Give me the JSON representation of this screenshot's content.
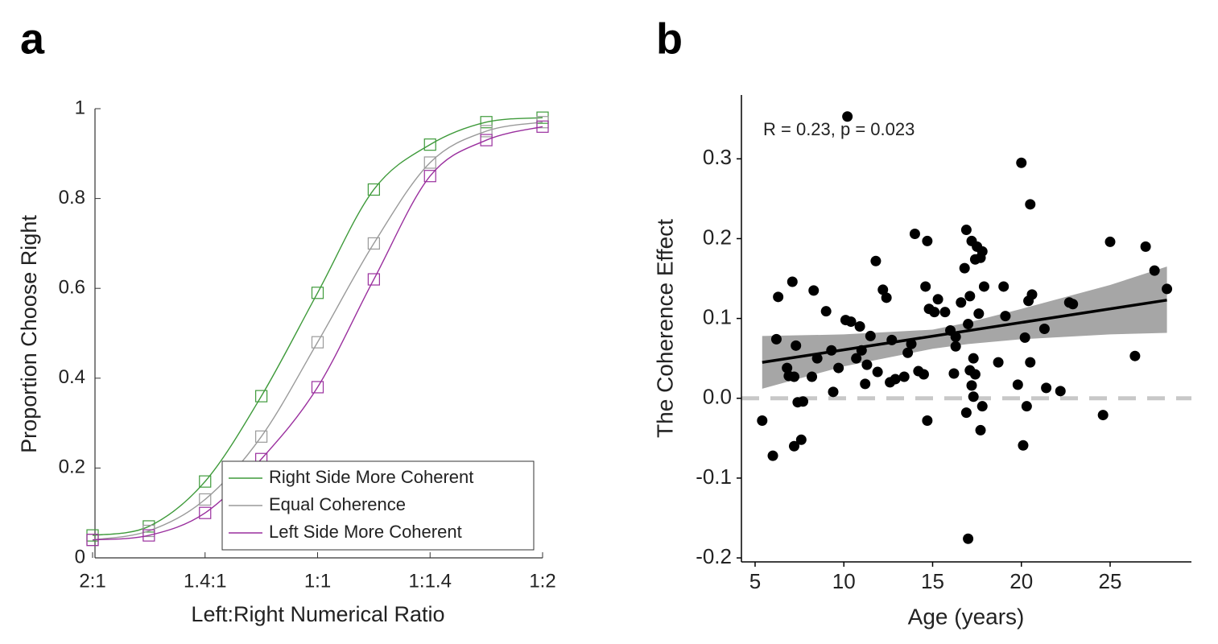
{
  "chart_data": [
    {
      "type": "line",
      "panel_label": "a",
      "markers": "square",
      "xlabel": "Left:Right Numerical Ratio",
      "ylabel": "Proportion Choose Right",
      "categories": [
        "2:1",
        null,
        "1.4:1",
        null,
        "1:1",
        null,
        "1:1.4",
        null,
        "1:2"
      ],
      "series": [
        {
          "name": "Right Side More Coherent",
          "color": "#3e9a3a",
          "values": [
            0.05,
            0.07,
            0.17,
            0.36,
            0.59,
            0.82,
            0.92,
            0.97,
            0.98
          ]
        },
        {
          "name": "Equal Coherence",
          "color": "#9a9a9a",
          "values": [
            0.04,
            0.06,
            0.13,
            0.27,
            0.48,
            0.7,
            0.88,
            0.95,
            0.97
          ]
        },
        {
          "name": "Left Side More Coherent",
          "color": "#9a2f9e",
          "values": [
            0.04,
            0.05,
            0.1,
            0.22,
            0.38,
            0.62,
            0.85,
            0.93,
            0.96
          ]
        }
      ],
      "ylim": [
        0,
        1
      ],
      "yticks": [
        0,
        0.2,
        0.4,
        0.6,
        0.8,
        1
      ],
      "legend": "lower right"
    },
    {
      "type": "scatter",
      "panel_label": "b",
      "color": "#000000",
      "xlabel": "Age (years)",
      "ylabel": "The Coherence Effect",
      "annotation": "R = 0.23, p = 0.023",
      "x": [
        5.4,
        6.0,
        6.2,
        6.3,
        6.8,
        6.9,
        7.1,
        7.2,
        7.2,
        7.3,
        7.4,
        7.6,
        7.7,
        8.2,
        8.3,
        8.5,
        9.0,
        9.3,
        9.4,
        9.7,
        10.1,
        10.2,
        10.4,
        10.7,
        10.9,
        11.0,
        11.2,
        11.3,
        11.5,
        11.8,
        11.9,
        12.2,
        12.4,
        12.6,
        12.7,
        12.9,
        13.4,
        13.6,
        13.8,
        14.0,
        14.2,
        14.5,
        14.6,
        14.7,
        14.7,
        14.8,
        15.1,
        15.3,
        15.7,
        16.0,
        16.2,
        16.3,
        16.3,
        16.6,
        16.8,
        16.9,
        16.9,
        17.0,
        17.0,
        17.1,
        17.1,
        17.2,
        17.2,
        17.3,
        17.3,
        17.4,
        17.4,
        17.5,
        17.6,
        17.7,
        17.7,
        17.8,
        17.9,
        17.8,
        18.7,
        19.0,
        19.1,
        19.8,
        20.0,
        20.1,
        20.2,
        20.3,
        20.4,
        20.5,
        20.5,
        20.6,
        21.3,
        21.4,
        22.2,
        22.7,
        22.9,
        24.6,
        25.0,
        26.4,
        27.0,
        27.5,
        28.2
      ],
      "values": [
        -0.028,
        -0.072,
        0.074,
        0.127,
        0.038,
        0.028,
        0.146,
        -0.06,
        0.027,
        0.066,
        -0.005,
        -0.052,
        -0.004,
        0.027,
        0.135,
        0.05,
        0.109,
        0.06,
        0.008,
        0.038,
        0.098,
        0.353,
        0.096,
        0.05,
        0.09,
        0.06,
        0.018,
        0.042,
        0.078,
        0.172,
        0.033,
        0.136,
        0.126,
        0.02,
        0.073,
        0.024,
        0.027,
        0.057,
        0.068,
        0.206,
        0.034,
        0.03,
        0.14,
        -0.028,
        0.197,
        0.112,
        0.108,
        0.124,
        0.108,
        0.085,
        0.031,
        0.065,
        0.077,
        0.12,
        0.163,
        -0.018,
        0.211,
        -0.176,
        0.093,
        0.128,
        0.035,
        0.016,
        0.197,
        0.002,
        0.05,
        0.174,
        0.03,
        0.19,
        0.106,
        -0.04,
        0.176,
        0.184,
        0.14,
        -0.01,
        0.045,
        0.14,
        0.103,
        0.017,
        0.295,
        -0.059,
        0.076,
        -0.01,
        0.122,
        0.243,
        0.045,
        0.13,
        0.087,
        0.013,
        0.009,
        0.12,
        0.118,
        -0.021,
        0.196,
        0.053,
        0.19,
        0.16,
        0.137
      ],
      "fit_line": {
        "x": [
          5.4,
          28.2
        ],
        "values": [
          0.045,
          0.123
        ]
      },
      "confidence_band": {
        "x": [
          5.4,
          10,
          15,
          17,
          20,
          25,
          28.2
        ],
        "lower": [
          0.012,
          0.04,
          0.062,
          0.068,
          0.074,
          0.08,
          0.082
        ],
        "upper": [
          0.078,
          0.08,
          0.086,
          0.095,
          0.112,
          0.142,
          0.165
        ],
        "color": "#a6a6a6"
      },
      "reference_line": 0,
      "xlim": [
        4.23,
        29.58
      ],
      "xticks": [
        5,
        10,
        15,
        20,
        25
      ],
      "ylim": [
        -0.205,
        0.38
      ],
      "yticks": [
        -0.2,
        -0.1,
        {
          "value": 0,
          "label": "0.0"
        },
        0.1,
        0.2,
        0.3
      ]
    }
  ]
}
